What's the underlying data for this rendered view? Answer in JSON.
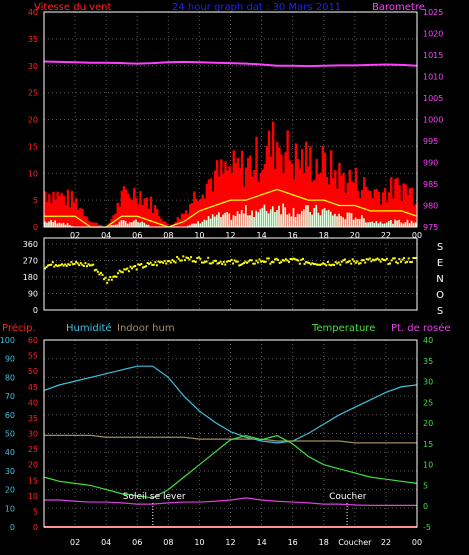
{
  "header": {
    "wind_label": "Vitesse du vent",
    "title": "24 hour graph dat : 30 Mars 2011",
    "barometer_label": "Barometre"
  },
  "direction_letters": [
    "S",
    "E",
    "N",
    "O",
    "S"
  ],
  "bottom_labels": {
    "precip": "Précip.",
    "humidity": "Humidité",
    "indoor_hum": "Indoor hum",
    "temperature": "Temperature",
    "dewpoint": "Pt. de rosée"
  },
  "events": {
    "sunrise_label": "Soleil se lever",
    "sunset_label": "Coucher"
  },
  "colors": {
    "background": "#000000",
    "frame": "#ffffff",
    "grid": "#5a5a5a",
    "wind_axis": "#ff2020",
    "baro_axis": "#ff40ff",
    "title": "#2020ff",
    "dir_axis": "#ffffff",
    "precip": "#ff2020",
    "humidity": "#40c0e0",
    "indoor": "#a09060",
    "temperature": "#40e040",
    "dewpoint": "#e040e0",
    "wind_gust": "#ff0000",
    "wind_avg": "#ffff00",
    "wind_low": "#e0ffe0",
    "direction": "#ffff00"
  },
  "chart_data": [
    {
      "type": "area",
      "name": "wind-barometer",
      "x_ticks": [
        "02",
        "04",
        "06",
        "08",
        "10",
        "12",
        "14",
        "16",
        "18",
        "20",
        "22",
        "00"
      ],
      "y_left_ticks": [
        0,
        5,
        10,
        15,
        20,
        25,
        30,
        35,
        40
      ],
      "y_left_range": [
        0,
        40
      ],
      "y_right_ticks": [
        975,
        980,
        985,
        990,
        995,
        1000,
        1005,
        1010,
        1015,
        1020,
        1025
      ],
      "y_right_range": [
        975,
        1025
      ],
      "x_hours": [
        0,
        1,
        2,
        3,
        4,
        5,
        6,
        7,
        8,
        9,
        10,
        11,
        12,
        13,
        14,
        15,
        16,
        17,
        18,
        19,
        20,
        21,
        22,
        23,
        24
      ],
      "barometer": [
        1013.5,
        1013.4,
        1013.3,
        1013.2,
        1013.2,
        1013.1,
        1013.0,
        1013.1,
        1013.3,
        1013.4,
        1013.3,
        1013.2,
        1013.1,
        1013.0,
        1012.8,
        1012.5,
        1012.5,
        1012.4,
        1012.5,
        1012.6,
        1012.6,
        1012.7,
        1012.8,
        1012.7,
        1012.5
      ],
      "wind_gust": [
        7,
        6,
        5,
        1,
        0,
        6,
        7,
        4,
        0,
        3,
        8,
        10,
        11,
        12,
        14,
        17,
        13,
        13,
        12,
        10,
        9,
        7,
        7,
        8,
        6
      ],
      "wind_avg": [
        2,
        2,
        2,
        0,
        0,
        2,
        2,
        1,
        0,
        1,
        3,
        4,
        5,
        5,
        6,
        7,
        6,
        5,
        5,
        4,
        4,
        3,
        3,
        3,
        2
      ],
      "wind_low": [
        1,
        1,
        0,
        0,
        0,
        1,
        1,
        0,
        0,
        0,
        1,
        2,
        2,
        3,
        3,
        4,
        3,
        3,
        3,
        2,
        2,
        1,
        1,
        1,
        1
      ],
      "grid": true
    },
    {
      "type": "scatter",
      "name": "wind-direction",
      "x_ticks": [
        "02",
        "04",
        "06",
        "08",
        "10",
        "12",
        "14",
        "16",
        "18",
        "20",
        "22",
        "00"
      ],
      "y_ticks": [
        360,
        270,
        180,
        90,
        0
      ],
      "y_range": [
        0,
        360
      ],
      "x_hours": [
        0,
        1,
        2,
        3,
        4,
        5,
        6,
        7,
        8,
        9,
        10,
        11,
        12,
        13,
        14,
        15,
        16,
        17,
        18,
        19,
        20,
        21,
        22,
        23,
        24
      ],
      "direction": [
        240,
        255,
        250,
        245,
        160,
        220,
        235,
        250,
        270,
        280,
        275,
        265,
        260,
        255,
        270,
        265,
        270,
        260,
        255,
        260,
        265,
        270,
        265,
        270,
        275
      ],
      "grid": true
    },
    {
      "type": "line",
      "name": "humidity-temperature",
      "x_ticks": [
        "02",
        "04",
        "06",
        "08",
        "10",
        "12",
        "14",
        "16",
        "18",
        "Coucher",
        "22",
        "00"
      ],
      "left_axis_precip": [
        0,
        5,
        10,
        15,
        20,
        25,
        30,
        35,
        40,
        45,
        50,
        55,
        60
      ],
      "left_axis_humidity": [
        0,
        10,
        20,
        30,
        40,
        50,
        60,
        70,
        80,
        90,
        100
      ],
      "right_axis_temperature": [
        -5,
        0,
        5,
        10,
        15,
        20,
        25,
        30,
        35,
        40
      ],
      "humidity_range": [
        0,
        100
      ],
      "temperature_range": [
        -5,
        40
      ],
      "x_hours": [
        0,
        1,
        2,
        3,
        4,
        5,
        6,
        7,
        8,
        9,
        10,
        11,
        12,
        13,
        14,
        15,
        16,
        17,
        18,
        19,
        20,
        21,
        22,
        23,
        24
      ],
      "series": [
        {
          "name": "Humidité",
          "values": [
            73,
            76,
            78,
            80,
            82,
            84,
            86,
            86,
            80,
            70,
            62,
            56,
            51,
            48,
            46,
            45,
            46,
            50,
            55,
            60,
            64,
            68,
            72,
            75,
            76
          ]
        },
        {
          "name": "Indoor hum",
          "values": [
            49,
            49,
            49,
            49,
            48,
            48,
            48,
            48,
            48,
            48,
            47,
            47,
            47,
            47,
            47,
            46,
            46,
            46,
            46,
            46,
            45,
            45,
            45,
            45,
            45
          ]
        },
        {
          "name": "Temperature",
          "values": [
            7,
            6,
            5.5,
            5,
            4,
            3,
            2.5,
            2,
            4,
            7,
            10,
            13,
            16,
            17,
            16,
            17,
            15,
            12,
            10,
            9,
            8,
            7,
            6.5,
            6,
            5.5
          ]
        },
        {
          "name": "Pt. de rosée",
          "values": [
            1.5,
            1.5,
            1.2,
            1,
            1,
            0.8,
            0.5,
            0.5,
            0.8,
            1,
            1,
            1.2,
            1.5,
            2,
            1.5,
            1.2,
            1,
            0.8,
            0.5,
            0.5,
            0.3,
            0.2,
            0.2,
            0.2,
            0.2
          ]
        },
        {
          "name": "Précip.",
          "values": [
            0,
            0,
            0,
            0,
            0,
            0,
            0,
            0,
            0,
            0,
            0,
            0,
            0,
            0,
            0,
            0,
            0,
            0,
            0,
            0,
            0,
            0,
            0,
            0,
            0
          ]
        }
      ],
      "sunrise_hour": 7,
      "sunset_hour": 19.5,
      "grid": true
    }
  ]
}
